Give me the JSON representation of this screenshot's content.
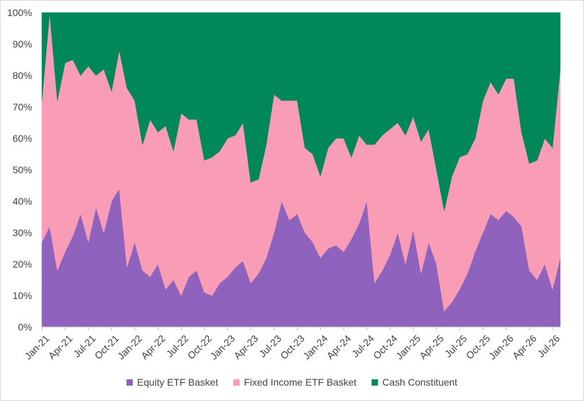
{
  "chart_data": {
    "type": "area",
    "stacked": true,
    "percent": true,
    "ylim": [
      0,
      100
    ],
    "y_ticks": [
      "0%",
      "10%",
      "20%",
      "30%",
      "40%",
      "50%",
      "60%",
      "70%",
      "80%",
      "90%",
      "100%"
    ],
    "x_range": [
      "2021-01",
      "2026-08"
    ],
    "x_tick_labels": [
      "Jan-21",
      "Apr-21",
      "Jul-21",
      "Oct-21",
      "Jan-22",
      "Apr-22",
      "Jul-22",
      "Oct-22",
      "Jan-23",
      "Apr-23",
      "Jul-23",
      "Oct-23",
      "Jan-24",
      "Apr-24",
      "Jul-24",
      "Oct-24",
      "Jan-25",
      "Apr-25",
      "Jul-25",
      "Oct-25",
      "Jan-26",
      "Apr-26",
      "Jul-26"
    ],
    "legend_position": "bottom",
    "grid": false,
    "x": [
      "Jan-21",
      "Feb-21",
      "Mar-21",
      "Apr-21",
      "May-21",
      "Jun-21",
      "Jul-21",
      "Aug-21",
      "Sep-21",
      "Oct-21",
      "Nov-21",
      "Dec-21",
      "Jan-22",
      "Feb-22",
      "Mar-22",
      "Apr-22",
      "May-22",
      "Jun-22",
      "Jul-22",
      "Aug-22",
      "Sep-22",
      "Oct-22",
      "Nov-22",
      "Dec-22",
      "Jan-23",
      "Feb-23",
      "Mar-23",
      "Apr-23",
      "May-23",
      "Jun-23",
      "Jul-23",
      "Aug-23",
      "Sep-23",
      "Oct-23",
      "Nov-23",
      "Dec-23",
      "Jan-24",
      "Feb-24",
      "Mar-24",
      "Apr-24",
      "May-24",
      "Jun-24",
      "Jul-24",
      "Aug-24",
      "Sep-24",
      "Oct-24",
      "Nov-24",
      "Dec-24",
      "Jan-25",
      "Feb-25",
      "Mar-25",
      "Apr-25",
      "May-25",
      "Jun-25",
      "Jul-25",
      "Aug-25",
      "Sep-25",
      "Oct-25",
      "Nov-25",
      "Dec-25",
      "Jan-26",
      "Feb-26",
      "Mar-26",
      "Apr-26",
      "May-26",
      "Jun-26",
      "Jul-26",
      "Aug-26"
    ],
    "series": [
      {
        "name": "Equity ETF Basket",
        "color": "#8e62bd",
        "values": [
          27,
          32,
          18,
          24,
          29,
          36,
          27,
          38,
          30,
          40,
          44,
          19,
          27,
          18,
          16,
          20,
          12,
          15,
          10,
          16,
          18,
          11,
          10,
          14,
          16,
          19,
          21,
          14,
          17,
          22,
          30,
          40,
          34,
          36,
          30,
          27,
          22,
          25,
          26,
          24,
          28,
          33,
          40,
          14,
          18,
          23,
          30,
          20,
          31,
          17,
          27,
          20,
          5,
          8,
          12,
          17,
          24,
          30,
          36,
          34,
          37,
          35,
          32,
          18,
          15,
          20,
          12,
          22
        ]
      },
      {
        "name": "Fixed Income ETF Basket",
        "color": "#f89db5",
        "values": [
          45,
          68,
          54,
          60,
          56,
          44,
          56,
          42,
          52,
          35,
          44,
          57,
          45,
          40,
          50,
          42,
          52,
          41,
          58,
          50,
          48,
          42,
          44,
          42,
          44,
          42,
          44,
          32,
          30,
          36,
          44,
          32,
          38,
          36,
          27,
          28,
          26,
          32,
          34,
          36,
          26,
          28,
          18,
          44,
          43,
          40,
          35,
          41,
          36,
          42,
          36,
          30,
          32,
          40,
          42,
          38,
          36,
          42,
          42,
          40,
          42,
          44,
          30,
          34,
          38,
          40,
          45,
          60
        ]
      },
      {
        "name": "Cash Constituent",
        "color": "#00875a",
        "values": [
          28,
          0,
          28,
          16,
          15,
          20,
          17,
          20,
          18,
          25,
          12,
          24,
          28,
          42,
          34,
          38,
          36,
          44,
          32,
          34,
          34,
          47,
          46,
          44,
          40,
          39,
          35,
          54,
          53,
          42,
          26,
          28,
          28,
          28,
          43,
          45,
          52,
          43,
          40,
          40,
          46,
          39,
          42,
          42,
          39,
          37,
          35,
          39,
          33,
          41,
          37,
          50,
          63,
          52,
          46,
          45,
          40,
          28,
          22,
          26,
          21,
          21,
          38,
          48,
          47,
          40,
          43,
          18
        ]
      }
    ]
  }
}
